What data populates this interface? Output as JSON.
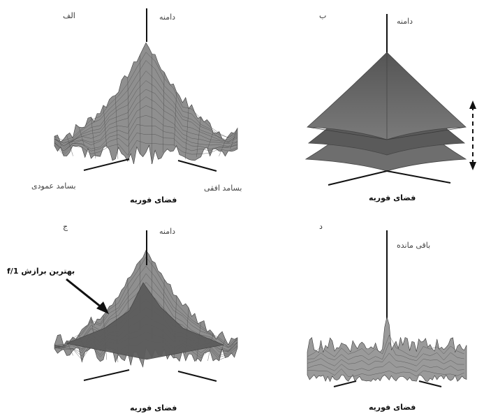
{
  "panels": {
    "a": {
      "letter": "الف",
      "axis_label": "دامنه",
      "horizontal_label": "بسامد افقی",
      "vertical_label": "بسامد عمودی",
      "caption": "فضای فوریه"
    },
    "b": {
      "letter": "ب",
      "axis_label": "دامنه",
      "caption": "فضای فوریه"
    },
    "c": {
      "letter": "ج",
      "axis_label": "دامنه",
      "annotation": "بهترین برازش 1/f",
      "caption": "فضای فوریه"
    },
    "d": {
      "letter": "د",
      "axis_label": "باقی مانده",
      "caption": "فضای فوریه"
    }
  },
  "colors": {
    "surface_fill": "#8c8c8c",
    "surface_dark": "#5e5e5e",
    "mesh_line": "#3a3a3a",
    "fit_surface": "#5c5c5c",
    "axis": "#111111"
  }
}
